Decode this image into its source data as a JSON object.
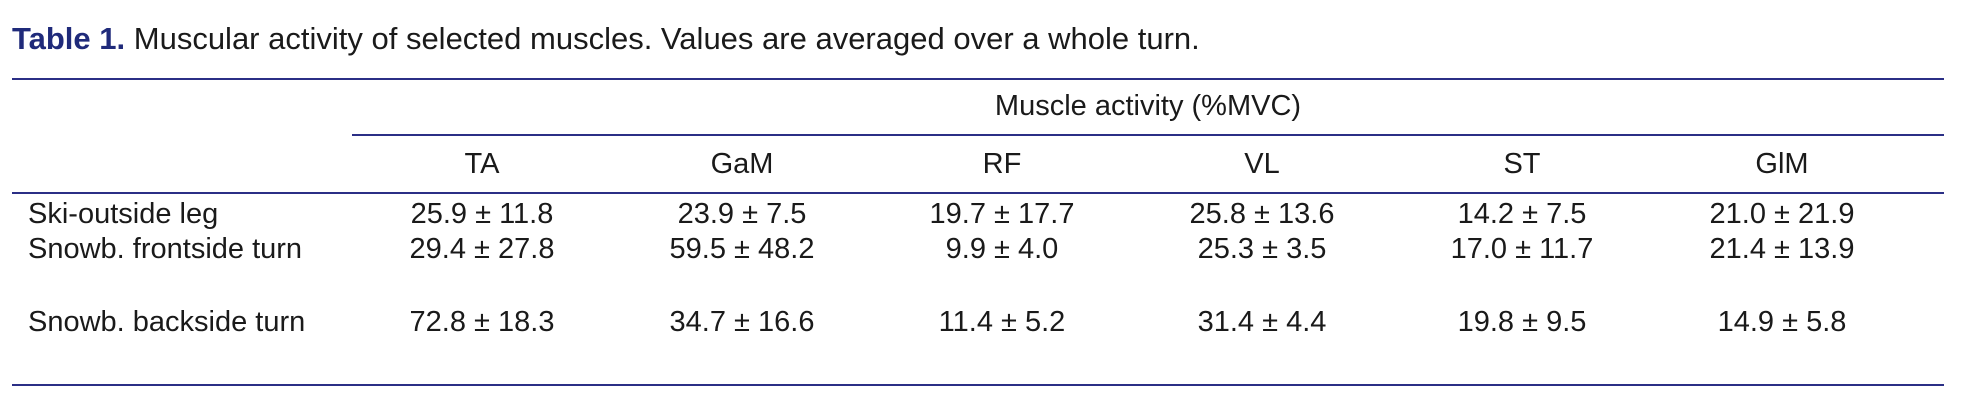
{
  "caption": {
    "label": "Table 1.",
    "text": " Muscular activity of selected muscles. Values are averaged over a whole turn."
  },
  "table": {
    "group_header": "Muscle activity (%MVC)",
    "columns": [
      "TA",
      "GaM",
      "RF",
      "VL",
      "ST",
      "GlM"
    ],
    "rows": [
      {
        "label": "Ski-outside leg",
        "values": [
          "25.9 ± 11.8",
          "23.9 ± 7.5",
          "19.7 ± 17.7",
          "25.8 ± 13.6",
          "14.2 ± 7.5",
          "21.0 ± 21.9"
        ]
      },
      {
        "label": "Snowb. frontside turn",
        "values": [
          "29.4 ± 27.8",
          "59.5 ± 48.2",
          "9.9 ± 4.0",
          "25.3 ± 3.5",
          "17.0 ± 11.7",
          "21.4 ± 13.9"
        ]
      },
      {
        "label": "Snowb. backside turn",
        "values": [
          "72.8 ± 18.3",
          "34.7 ± 16.6",
          "11.4 ± 5.2",
          "31.4 ± 4.4",
          "19.8 ± 9.5",
          "14.9 ± 5.8"
        ]
      }
    ]
  },
  "colors": {
    "accent": "#1f2a7a",
    "rule": "#2b2f86",
    "text": "#1a1a1a"
  }
}
